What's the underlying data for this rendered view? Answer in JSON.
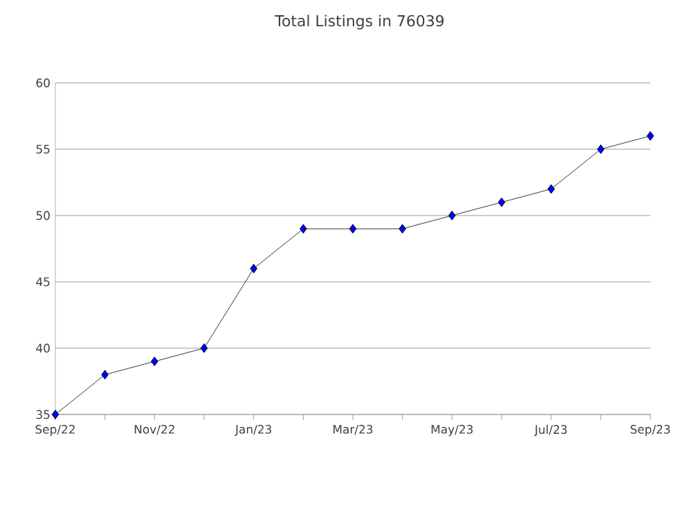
{
  "chart_data": {
    "type": "line",
    "title": "Total Listings in 76039",
    "categories": [
      "Sep/22",
      null,
      "Nov/22",
      null,
      "Jan/23",
      null,
      "Mar/23",
      null,
      "May/23",
      null,
      "Jul/23",
      null,
      "Sep/23"
    ],
    "series": [
      {
        "color": "#0000ff",
        "values": [
          35,
          38,
          39,
          40,
          46,
          49,
          49,
          49,
          50,
          51,
          52,
          55,
          56
        ]
      }
    ],
    "ylim": [
      35,
      60
    ],
    "yticks": [
      35,
      40,
      45,
      50,
      55,
      60
    ],
    "grid": "y",
    "marker": "diamond",
    "line_style": "solid"
  }
}
